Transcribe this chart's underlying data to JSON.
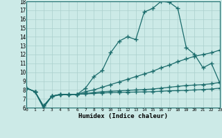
{
  "xlabel": "Humidex (Indice chaleur)",
  "bg_color": "#cceae7",
  "grid_color": "#aacfcc",
  "line_color": "#1a6b6b",
  "xlim": [
    0,
    23
  ],
  "ylim": [
    6,
    18
  ],
  "xticks": [
    0,
    1,
    2,
    3,
    4,
    5,
    6,
    7,
    8,
    9,
    10,
    11,
    12,
    13,
    14,
    15,
    16,
    17,
    18,
    19,
    20,
    21,
    22,
    23
  ],
  "yticks": [
    6,
    7,
    8,
    9,
    10,
    11,
    12,
    13,
    14,
    15,
    16,
    17,
    18
  ],
  "line1_x": [
    0,
    1,
    2,
    3,
    4,
    5,
    6,
    7,
    8,
    9,
    10,
    11,
    12,
    13,
    14,
    15,
    16,
    17,
    18,
    19,
    20,
    21,
    22,
    23
  ],
  "line1_y": [
    8.2,
    7.8,
    6.0,
    7.3,
    7.5,
    7.5,
    7.5,
    8.2,
    9.5,
    10.2,
    12.2,
    13.5,
    14.0,
    13.7,
    16.8,
    17.2,
    18.0,
    17.9,
    17.2,
    12.8,
    12.0,
    10.5,
    11.0,
    8.8
  ],
  "line2_x": [
    0,
    1,
    2,
    3,
    4,
    5,
    6,
    7,
    8,
    9,
    10,
    11,
    12,
    13,
    14,
    15,
    16,
    17,
    18,
    19,
    20,
    21,
    22,
    23
  ],
  "line2_y": [
    8.2,
    7.8,
    6.0,
    7.3,
    7.5,
    7.5,
    7.5,
    7.8,
    8.0,
    8.3,
    8.6,
    8.9,
    9.2,
    9.5,
    9.8,
    10.1,
    10.5,
    10.8,
    11.2,
    11.5,
    11.8,
    12.0,
    12.2,
    12.5
  ],
  "line3_x": [
    0,
    1,
    2,
    3,
    4,
    5,
    6,
    7,
    8,
    9,
    10,
    11,
    12,
    13,
    14,
    15,
    16,
    17,
    18,
    19,
    20,
    21,
    22,
    23
  ],
  "line3_y": [
    8.2,
    7.8,
    6.2,
    7.3,
    7.5,
    7.5,
    7.5,
    7.6,
    7.7,
    7.8,
    7.85,
    7.9,
    7.95,
    8.0,
    8.05,
    8.1,
    8.2,
    8.3,
    8.4,
    8.5,
    8.55,
    8.6,
    8.7,
    8.85
  ],
  "line4_x": [
    0,
    1,
    2,
    3,
    4,
    5,
    6,
    7,
    8,
    9,
    10,
    11,
    12,
    13,
    14,
    15,
    16,
    17,
    18,
    19,
    20,
    21,
    22,
    23
  ],
  "line4_y": [
    8.2,
    7.8,
    6.2,
    7.25,
    7.45,
    7.45,
    7.5,
    7.55,
    7.6,
    7.65,
    7.7,
    7.72,
    7.74,
    7.76,
    7.78,
    7.8,
    7.85,
    7.9,
    7.92,
    7.95,
    8.0,
    8.05,
    8.1,
    8.2
  ]
}
